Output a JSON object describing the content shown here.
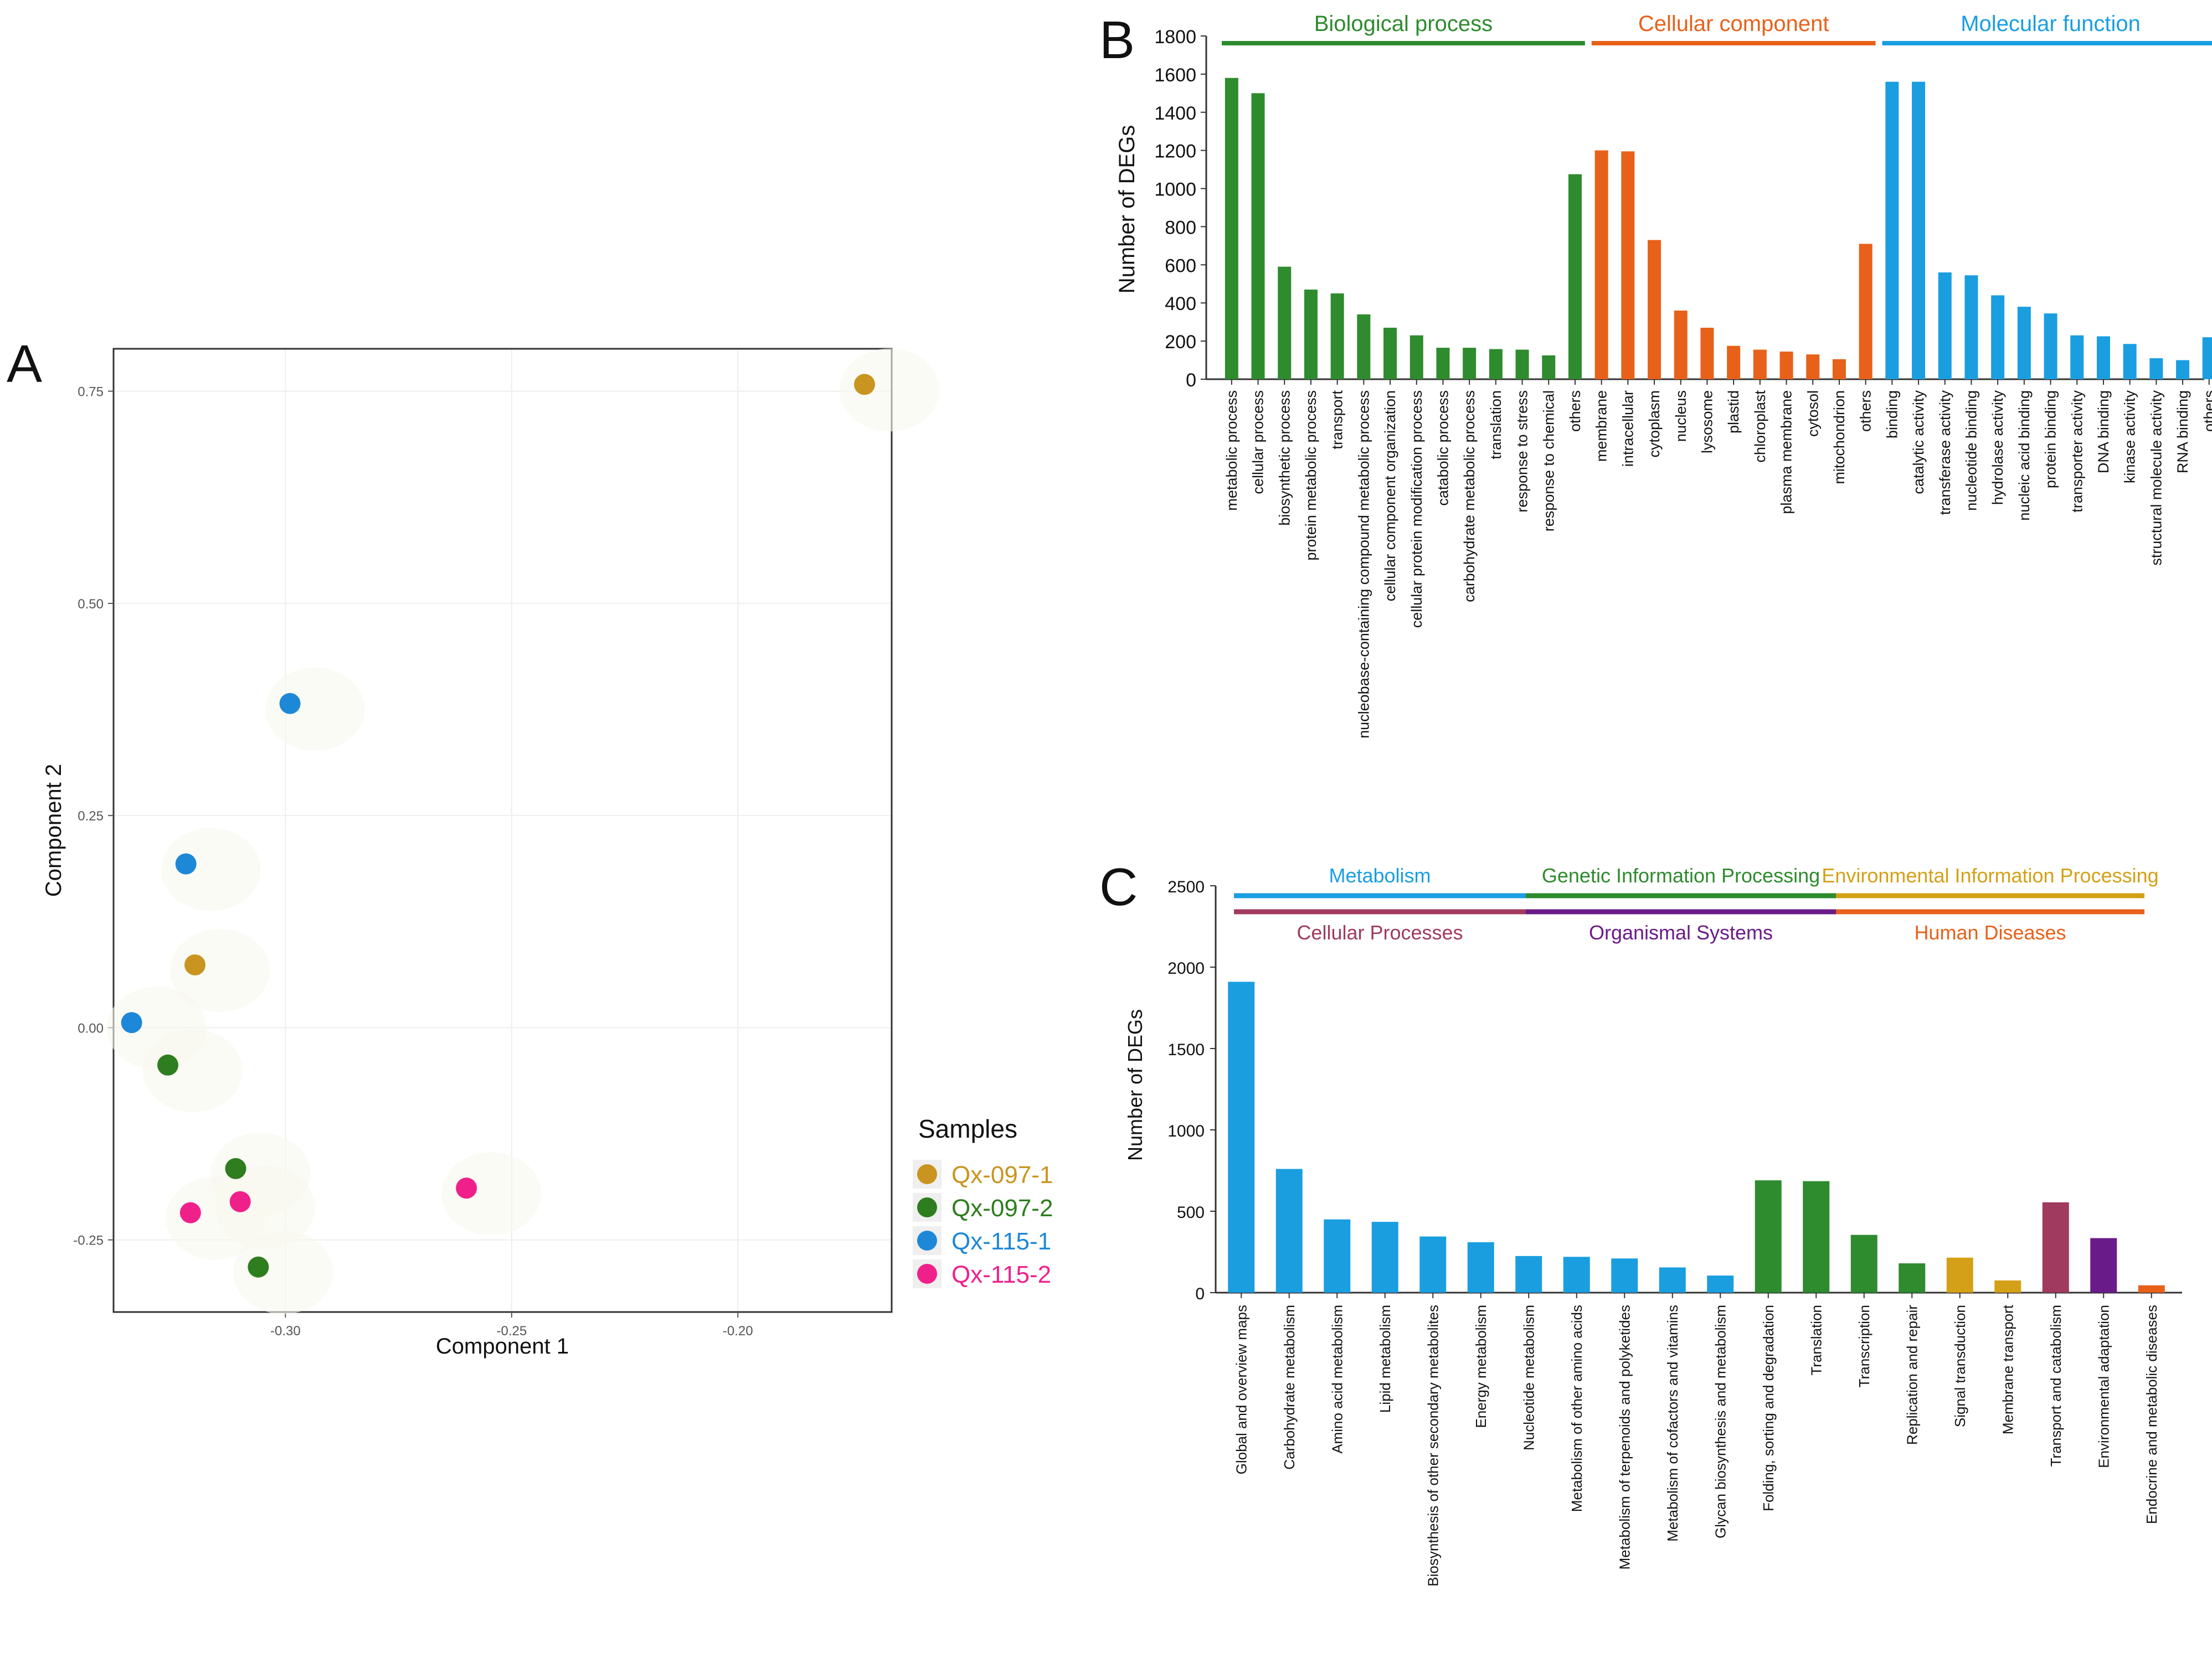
{
  "panels": {
    "a": {
      "letter": "A"
    },
    "b": {
      "letter": "B"
    },
    "c": {
      "letter": "C"
    }
  },
  "colors": {
    "bp": "#2e8b2e",
    "cc": "#e8611a",
    "mf": "#1a9ee0",
    "metabolism": "#1a9ee0",
    "genetic": "#2e8b2e",
    "environmental": "#d4a017",
    "cellular": "#a03a5e",
    "organismal": "#6a1b8a",
    "human": "#e8611a",
    "qx0971": "#c99520",
    "qx0972": "#2e7d1e",
    "qx1151": "#1e88d8",
    "qx1152": "#f0208a"
  },
  "chart_data": [
    {
      "panel": "A",
      "type": "scatter",
      "title": "",
      "xlabel": "Component 1",
      "ylabel": "Component 2",
      "xlim": [
        -0.338,
        -0.166
      ],
      "ylim": [
        -0.335,
        0.8
      ],
      "xticks": [
        -0.3,
        -0.25,
        -0.2
      ],
      "xtick_labels": [
        "-0.30",
        "-0.25",
        "-0.20"
      ],
      "yticks": [
        -0.25,
        0.0,
        0.25,
        0.5,
        0.75
      ],
      "ytick_labels": [
        "-0.25",
        "0.00",
        "0.25",
        "0.50",
        "0.75"
      ],
      "grid": true,
      "legend": {
        "title": "Samples",
        "position": "right"
      },
      "series": [
        {
          "name": "Qx-097-1",
          "color_key": "qx0971",
          "points": [
            [
              -0.172,
              0.758
            ],
            [
              -0.32,
              0.074
            ]
          ]
        },
        {
          "name": "Qx-097-2",
          "color_key": "qx0972",
          "points": [
            [
              -0.326,
              -0.044
            ],
            [
              -0.311,
              -0.166
            ],
            [
              -0.306,
              -0.282
            ]
          ]
        },
        {
          "name": "Qx-115-1",
          "color_key": "qx1151",
          "points": [
            [
              -0.299,
              0.382
            ],
            [
              -0.322,
              0.193
            ],
            [
              -0.334,
              0.006
            ]
          ]
        },
        {
          "name": "Qx-115-2",
          "color_key": "qx1152",
          "points": [
            [
              -0.321,
              -0.218
            ],
            [
              -0.31,
              -0.205
            ],
            [
              -0.26,
              -0.189
            ]
          ]
        }
      ]
    },
    {
      "panel": "B",
      "type": "bar",
      "title": "",
      "xlabel": "",
      "ylabel": "Number of DEGs",
      "ylim": [
        0,
        1800
      ],
      "yticks": [
        0,
        200,
        400,
        600,
        800,
        1000,
        1200,
        1400,
        1600,
        1800
      ],
      "groups": [
        {
          "name": "Biological process",
          "color_key": "bp",
          "categories": [
            "metabolic process",
            "cellular process",
            "biosynthetic process",
            "protein metabolic process",
            "transport",
            "nucleobase-containing compound metabolic process",
            "cellular component organization",
            "cellular protein modification process",
            "catabolic process",
            "carbohydrate metabolic process",
            "translation",
            "response to stress",
            "response to chemical",
            "others"
          ],
          "values": [
            1580,
            1500,
            590,
            470,
            450,
            340,
            270,
            230,
            165,
            165,
            158,
            155,
            125,
            1075
          ]
        },
        {
          "name": "Cellular component",
          "color_key": "cc",
          "categories": [
            "membrane",
            "intracellular",
            "cytoplasm",
            "nucleus",
            "lysosome",
            "plastid",
            "chloroplast",
            "plasma membrane",
            "cytosol",
            "mitochondrion",
            "others"
          ],
          "values": [
            1200,
            1195,
            730,
            360,
            270,
            175,
            155,
            145,
            130,
            105,
            710
          ]
        },
        {
          "name": "Molecular function",
          "color_key": "mf",
          "categories": [
            "binding",
            "catalytic activity",
            "transferase activity",
            "nucleotide binding",
            "hydrolase activity",
            "nucleic acid binding",
            "protein binding",
            "transporter activity",
            "DNA binding",
            "kinase activity",
            "structural molecule activity",
            "RNA binding",
            "others"
          ],
          "values": [
            1560,
            1560,
            560,
            545,
            440,
            380,
            345,
            230,
            225,
            185,
            110,
            100,
            220
          ]
        }
      ]
    },
    {
      "panel": "C",
      "type": "bar",
      "title": "",
      "xlabel": "",
      "ylabel": "Number of DEGs",
      "ylim": [
        0,
        2500
      ],
      "yticks": [
        0,
        500,
        1000,
        1500,
        2000,
        2500
      ],
      "groups_top": [
        {
          "name": "Metabolism",
          "color_key": "metabolism"
        },
        {
          "name": "Genetic Information Processing",
          "color_key": "genetic"
        },
        {
          "name": "Environmental Information Processing",
          "color_key": "environmental"
        }
      ],
      "groups_bottom": [
        {
          "name": "Cellular Processes",
          "color_key": "cellular"
        },
        {
          "name": "Organismal Systems",
          "color_key": "organismal"
        },
        {
          "name": "Human Diseases",
          "color_key": "human"
        }
      ],
      "categories": [
        "Global and overview maps",
        "Carbohydrate metabolism",
        "Amino acid metabolism",
        "Lipid metabolism",
        "Biosynthesis of other secondary metabolites",
        "Energy metabolism",
        "Nucleotide metabolism",
        "Metabolism of other amino acids",
        "Metabolism of terpenoids and polyketides",
        "Metabolism of cofactors and vitamins",
        "Glycan biosynthesis and metabolism",
        "Folding, sorting and degradation",
        "Translation",
        "Transcription",
        "Replication and repair",
        "Signal transduction",
        "Membrane transport",
        "Transport and catabolism",
        "Environmental adaptation",
        "Endocrine and metabolic diseases"
      ],
      "values": [
        1910,
        760,
        450,
        435,
        345,
        310,
        225,
        220,
        210,
        155,
        105,
        690,
        685,
        355,
        180,
        215,
        75,
        555,
        335,
        45
      ],
      "bar_color_keys": [
        "metabolism",
        "metabolism",
        "metabolism",
        "metabolism",
        "metabolism",
        "metabolism",
        "metabolism",
        "metabolism",
        "metabolism",
        "metabolism",
        "metabolism",
        "genetic",
        "genetic",
        "genetic",
        "genetic",
        "environmental",
        "environmental",
        "cellular",
        "organismal",
        "human"
      ]
    }
  ]
}
